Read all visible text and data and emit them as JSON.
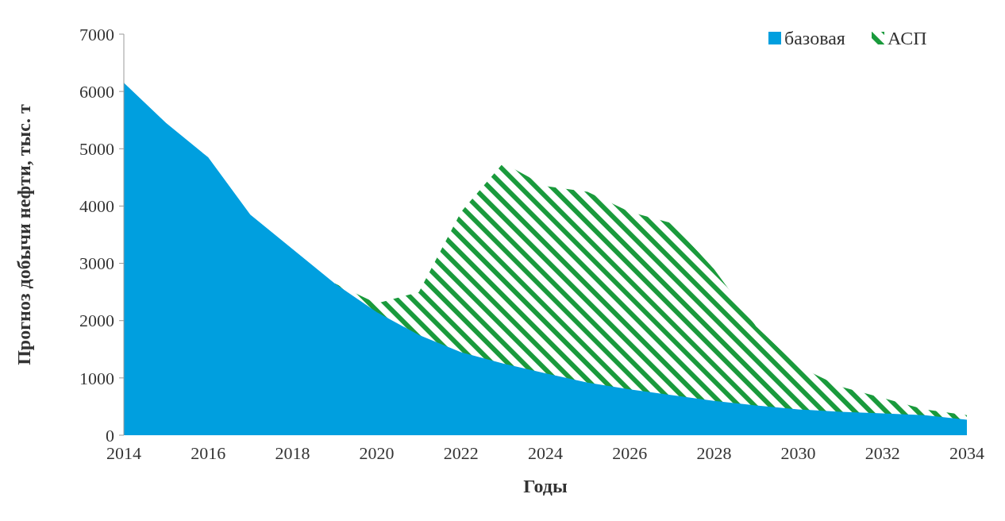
{
  "chart_data": {
    "type": "area",
    "xlabel": "Годы",
    "ylabel": "Прогноз добычи нефти, тыс. т",
    "x": [
      2014,
      2015,
      2016,
      2017,
      2018,
      2019,
      2020,
      2021,
      2022,
      2023,
      2024,
      2025,
      2026,
      2027,
      2028,
      2029,
      2030,
      2031,
      2032,
      2033,
      2034
    ],
    "series": [
      {
        "name": "АСП",
        "color": "#1a9a3c",
        "x": [
          2019,
          2020,
          2021,
          2022,
          2023,
          2024,
          2025,
          2026,
          2027,
          2028,
          2029,
          2030,
          2031,
          2032,
          2033,
          2034
        ],
        "values": [
          2650,
          2300,
          2500,
          3900,
          4750,
          4350,
          4250,
          3900,
          3700,
          2900,
          1900,
          1200,
          850,
          650,
          450,
          350
        ]
      },
      {
        "name": "базовая",
        "color": "#009fdf",
        "values": [
          6150,
          5450,
          4850,
          3850,
          3250,
          2650,
          2150,
          1750,
          1450,
          1250,
          1080,
          920,
          800,
          700,
          600,
          520,
          450,
          410,
          380,
          350,
          270
        ]
      }
    ],
    "xlim": [
      2014,
      2034
    ],
    "xticks": [
      2014,
      2016,
      2018,
      2020,
      2022,
      2024,
      2026,
      2028,
      2030,
      2032,
      2034
    ],
    "ylim": [
      0,
      7000
    ],
    "yticks": [
      0,
      1000,
      2000,
      3000,
      4000,
      5000,
      6000,
      7000
    ],
    "grid": false,
    "legend": "top right"
  }
}
